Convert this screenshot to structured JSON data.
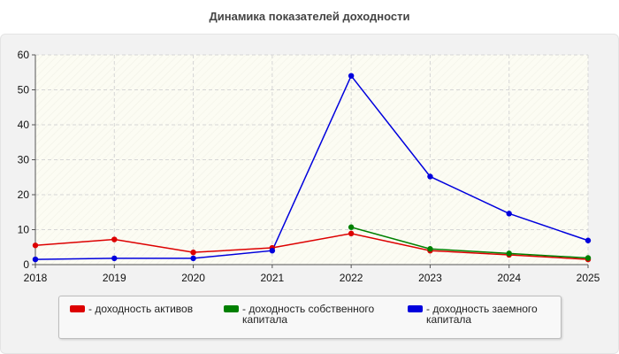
{
  "chart_data": {
    "type": "line",
    "title": "Динамика показателей доходности",
    "x": [
      "2018",
      "2019",
      "2020",
      "2021",
      "2022",
      "2023",
      "2024",
      "2025"
    ],
    "ylim": [
      0,
      60
    ],
    "yticks": [
      "0",
      "10",
      "20",
      "30",
      "40",
      "50",
      "60"
    ],
    "grid": true,
    "legend_position": "bottom",
    "series": [
      {
        "name": "- доходность активов",
        "color": "#dd0000",
        "values": [
          5.5,
          7.2,
          3.5,
          4.8,
          8.9,
          4.0,
          2.8,
          1.5
        ]
      },
      {
        "name": "- доходность собственного капитала",
        "color": "#008000",
        "values": [
          null,
          null,
          null,
          null,
          10.7,
          4.5,
          3.2,
          1.9
        ]
      },
      {
        "name": "- доходность заемного капитала",
        "color": "#0000dd",
        "values": [
          1.5,
          1.8,
          1.8,
          4.0,
          54.0,
          25.2,
          14.6,
          6.9
        ]
      }
    ]
  }
}
